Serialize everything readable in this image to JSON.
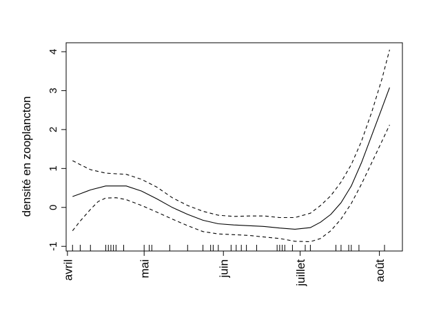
{
  "chart_data": {
    "type": "line",
    "ylabel": "densité en zooplancton",
    "xlabel": "",
    "x_unit": "day of year",
    "xlim": [
      96,
      220
    ],
    "ylim": [
      -1.05,
      4.2
    ],
    "x_ticks": [
      {
        "value": 91,
        "label": "avril"
      },
      {
        "value": 121,
        "label": "mai"
      },
      {
        "value": 152,
        "label": "juin"
      },
      {
        "value": 182,
        "label": "juillet"
      },
      {
        "value": 213,
        "label": "août"
      }
    ],
    "y_ticks": [
      -1,
      0,
      1,
      2,
      3,
      4
    ],
    "grid": false,
    "series": [
      {
        "role": "fit",
        "style": "solid",
        "points": [
          [
            93,
            0.28
          ],
          [
            96,
            0.35
          ],
          [
            100,
            0.45
          ],
          [
            106,
            0.55
          ],
          [
            114,
            0.55
          ],
          [
            120,
            0.42
          ],
          [
            126,
            0.22
          ],
          [
            132,
            0.0
          ],
          [
            138,
            -0.18
          ],
          [
            144,
            -0.33
          ],
          [
            150,
            -0.42
          ],
          [
            156,
            -0.45
          ],
          [
            162,
            -0.47
          ],
          [
            168,
            -0.49
          ],
          [
            174,
            -0.53
          ],
          [
            180,
            -0.56
          ],
          [
            186,
            -0.52
          ],
          [
            190,
            -0.38
          ],
          [
            194,
            -0.18
          ],
          [
            198,
            0.12
          ],
          [
            202,
            0.55
          ],
          [
            206,
            1.15
          ],
          [
            210,
            1.85
          ],
          [
            214,
            2.55
          ],
          [
            217,
            3.08
          ]
        ]
      },
      {
        "role": "upper confidence band",
        "style": "dashed",
        "points": [
          [
            93,
            1.2
          ],
          [
            96,
            1.1
          ],
          [
            100,
            0.97
          ],
          [
            106,
            0.88
          ],
          [
            114,
            0.85
          ],
          [
            120,
            0.72
          ],
          [
            126,
            0.52
          ],
          [
            132,
            0.25
          ],
          [
            138,
            0.05
          ],
          [
            144,
            -0.1
          ],
          [
            150,
            -0.2
          ],
          [
            156,
            -0.23
          ],
          [
            162,
            -0.22
          ],
          [
            168,
            -0.22
          ],
          [
            174,
            -0.26
          ],
          [
            180,
            -0.26
          ],
          [
            186,
            -0.15
          ],
          [
            190,
            0.05
          ],
          [
            194,
            0.3
          ],
          [
            198,
            0.65
          ],
          [
            202,
            1.1
          ],
          [
            206,
            1.7
          ],
          [
            210,
            2.45
          ],
          [
            214,
            3.3
          ],
          [
            217,
            4.05
          ]
        ]
      },
      {
        "role": "lower confidence band",
        "style": "dashed",
        "points": [
          [
            93,
            -0.6
          ],
          [
            96,
            -0.35
          ],
          [
            100,
            -0.05
          ],
          [
            103,
            0.15
          ],
          [
            106,
            0.24
          ],
          [
            110,
            0.25
          ],
          [
            114,
            0.2
          ],
          [
            120,
            0.05
          ],
          [
            126,
            -0.12
          ],
          [
            132,
            -0.3
          ],
          [
            138,
            -0.47
          ],
          [
            144,
            -0.62
          ],
          [
            150,
            -0.68
          ],
          [
            156,
            -0.7
          ],
          [
            162,
            -0.72
          ],
          [
            168,
            -0.76
          ],
          [
            174,
            -0.8
          ],
          [
            180,
            -0.87
          ],
          [
            186,
            -0.88
          ],
          [
            190,
            -0.8
          ],
          [
            194,
            -0.6
          ],
          [
            198,
            -0.3
          ],
          [
            202,
            0.1
          ],
          [
            206,
            0.6
          ],
          [
            210,
            1.15
          ],
          [
            214,
            1.7
          ],
          [
            217,
            2.12
          ]
        ]
      }
    ],
    "rug": [
      93,
      96,
      100,
      106,
      107,
      108,
      109,
      110,
      113,
      121,
      123,
      124,
      131,
      138,
      144,
      147,
      148,
      150,
      155,
      157,
      159,
      161,
      165,
      173,
      174,
      175,
      176,
      179,
      184,
      186,
      196,
      198,
      201,
      202,
      205,
      215
    ]
  }
}
